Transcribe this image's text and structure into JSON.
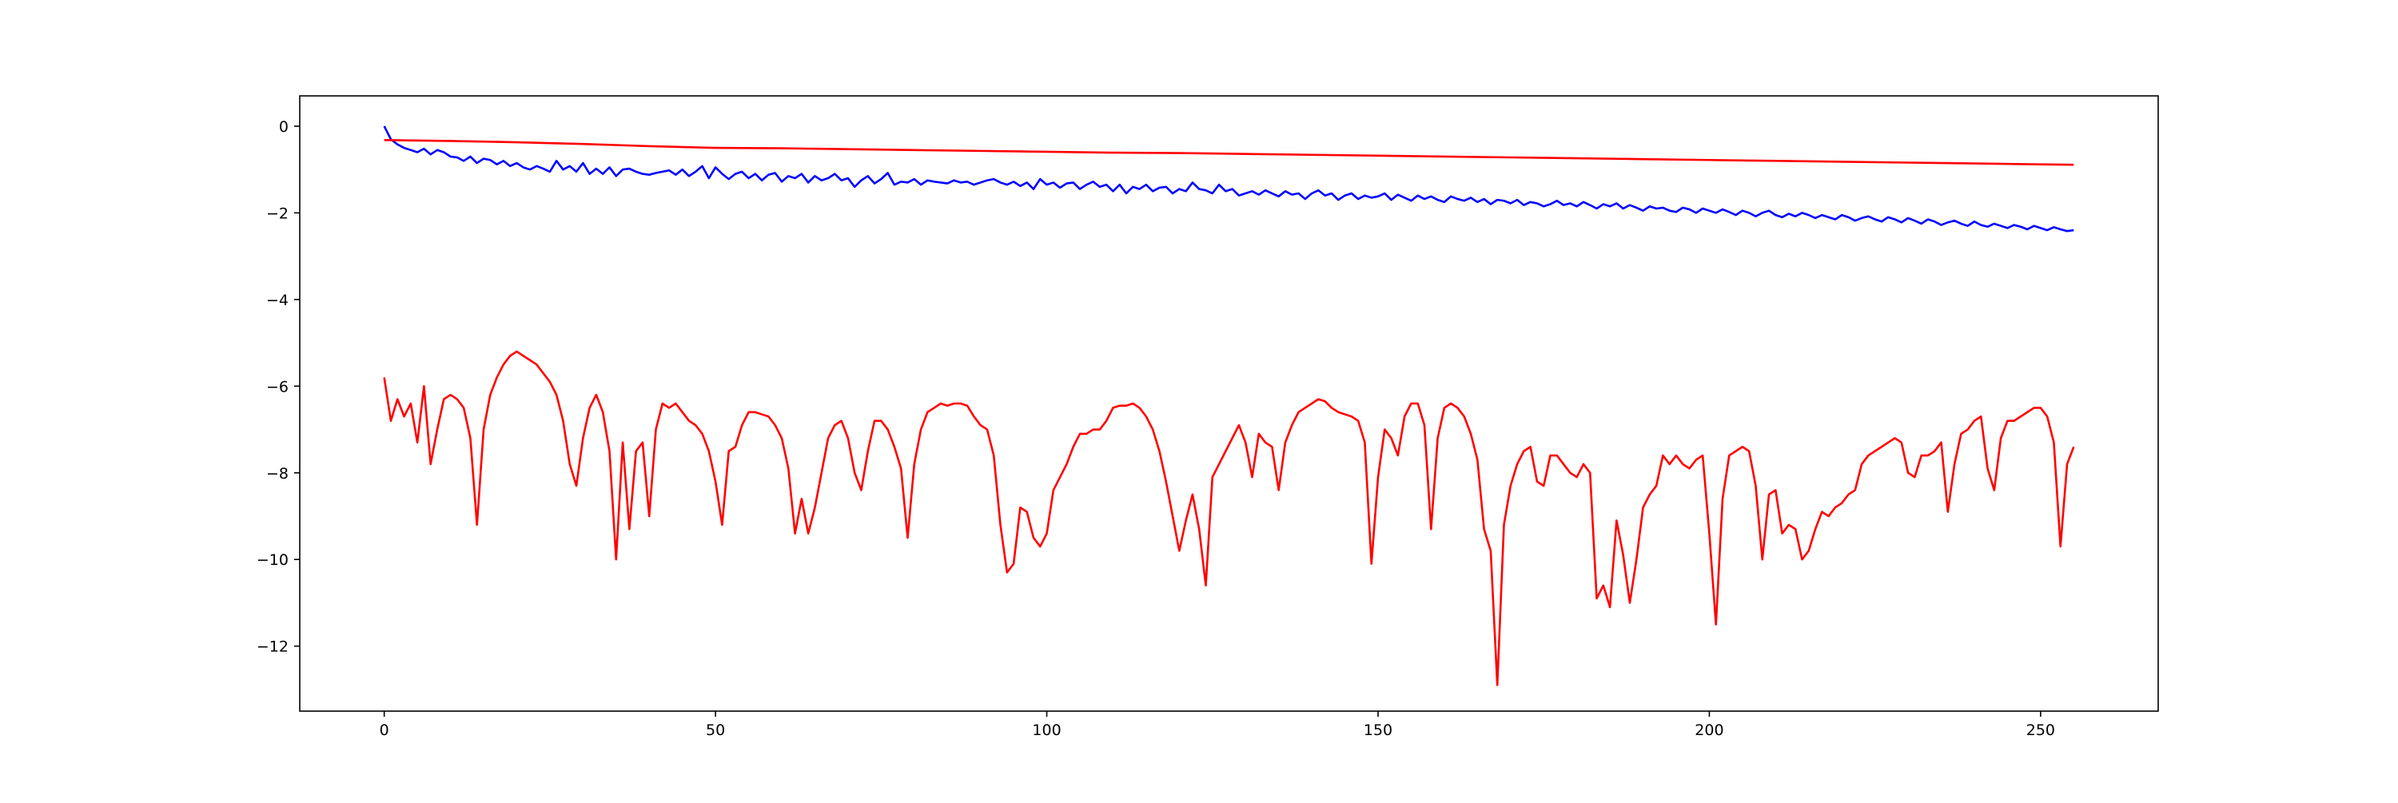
{
  "chart_data": {
    "type": "line",
    "title": "",
    "xlabel": "",
    "ylabel": "",
    "xlim": [
      -12.75,
      267.75
    ],
    "ylim": [
      -13.5,
      0.7
    ],
    "grid": false,
    "xticks": [
      0,
      50,
      100,
      150,
      200,
      250
    ],
    "yticks": [
      0,
      -2,
      -4,
      -6,
      -8,
      -10,
      -12
    ],
    "xtick_labels": [
      "0",
      "50",
      "100",
      "150",
      "200",
      "250"
    ],
    "ytick_labels": [
      "0",
      "−2",
      "−4",
      "−6",
      "−8",
      "−10",
      "−12"
    ],
    "series": [
      {
        "color": "#0000ff",
        "x": [
          0,
          1,
          2,
          3,
          4,
          5,
          6,
          7,
          8,
          9,
          10,
          11,
          12,
          13,
          14,
          15,
          16,
          17,
          18,
          19,
          20,
          21,
          22,
          23,
          24,
          25,
          26,
          27,
          28,
          29,
          30,
          31,
          32,
          33,
          34,
          35,
          36,
          37,
          38,
          39,
          40,
          41,
          42,
          43,
          44,
          45,
          46,
          47,
          48,
          49,
          50,
          51,
          52,
          53,
          54,
          55,
          56,
          57,
          58,
          59,
          60,
          61,
          62,
          63,
          64,
          65,
          66,
          67,
          68,
          69,
          70,
          71,
          72,
          73,
          74,
          75,
          76,
          77,
          78,
          79,
          80,
          81,
          82,
          83,
          84,
          85,
          86,
          87,
          88,
          89,
          90,
          91,
          92,
          93,
          94,
          95,
          96,
          97,
          98,
          99,
          100,
          101,
          102,
          103,
          104,
          105,
          106,
          107,
          108,
          109,
          110,
          111,
          112,
          113,
          114,
          115,
          116,
          117,
          118,
          119,
          120,
          121,
          122,
          123,
          124,
          125,
          126,
          127,
          128,
          129,
          130,
          131,
          132,
          133,
          134,
          135,
          136,
          137,
          138,
          139,
          140,
          141,
          142,
          143,
          144,
          145,
          146,
          147,
          148,
          149,
          150,
          151,
          152,
          153,
          154,
          155,
          156,
          157,
          158,
          159,
          160,
          161,
          162,
          163,
          164,
          165,
          166,
          167,
          168,
          169,
          170,
          171,
          172,
          173,
          174,
          175,
          176,
          177,
          178,
          179,
          180,
          181,
          182,
          183,
          184,
          185,
          186,
          187,
          188,
          189,
          190,
          191,
          192,
          193,
          194,
          195,
          196,
          197,
          198,
          199,
          200,
          201,
          202,
          203,
          204,
          205,
          206,
          207,
          208,
          209,
          210,
          211,
          212,
          213,
          214,
          215,
          216,
          217,
          218,
          219,
          220,
          221,
          222,
          223,
          224,
          225,
          226,
          227,
          228,
          229,
          230,
          231,
          232,
          233,
          234,
          235,
          236,
          237,
          238,
          239,
          240,
          241,
          242,
          243,
          244,
          245,
          246,
          247,
          248,
          249,
          250,
          251,
          252,
          253,
          254,
          255
        ],
        "y": [
          0.0,
          -0.3,
          -0.42,
          -0.5,
          -0.55,
          -0.6,
          -0.52,
          -0.65,
          -0.55,
          -0.6,
          -0.7,
          -0.72,
          -0.8,
          -0.7,
          -0.85,
          -0.75,
          -0.78,
          -0.88,
          -0.8,
          -0.92,
          -0.85,
          -0.95,
          -1.0,
          -0.92,
          -0.98,
          -1.05,
          -0.8,
          -1.0,
          -0.92,
          -1.05,
          -0.85,
          -1.1,
          -0.98,
          -1.1,
          -0.95,
          -1.15,
          -1.0,
          -0.98,
          -1.05,
          -1.1,
          -1.12,
          -1.08,
          -1.05,
          -1.02,
          -1.12,
          -1.0,
          -1.15,
          -1.05,
          -0.92,
          -1.2,
          -0.95,
          -1.1,
          -1.22,
          -1.1,
          -1.05,
          -1.2,
          -1.1,
          -1.25,
          -1.12,
          -1.08,
          -1.28,
          -1.15,
          -1.2,
          -1.1,
          -1.3,
          -1.15,
          -1.25,
          -1.2,
          -1.1,
          -1.25,
          -1.2,
          -1.4,
          -1.25,
          -1.15,
          -1.32,
          -1.22,
          -1.08,
          -1.35,
          -1.28,
          -1.3,
          -1.22,
          -1.35,
          -1.25,
          -1.28,
          -1.3,
          -1.32,
          -1.25,
          -1.3,
          -1.28,
          -1.35,
          -1.3,
          -1.25,
          -1.22,
          -1.3,
          -1.35,
          -1.28,
          -1.38,
          -1.3,
          -1.45,
          -1.22,
          -1.35,
          -1.3,
          -1.42,
          -1.32,
          -1.3,
          -1.45,
          -1.35,
          -1.28,
          -1.4,
          -1.35,
          -1.5,
          -1.35,
          -1.55,
          -1.4,
          -1.45,
          -1.35,
          -1.5,
          -1.42,
          -1.4,
          -1.55,
          -1.45,
          -1.5,
          -1.3,
          -1.45,
          -1.48,
          -1.55,
          -1.35,
          -1.5,
          -1.45,
          -1.6,
          -1.55,
          -1.5,
          -1.58,
          -1.48,
          -1.55,
          -1.62,
          -1.5,
          -1.58,
          -1.55,
          -1.68,
          -1.55,
          -1.48,
          -1.6,
          -1.55,
          -1.7,
          -1.6,
          -1.55,
          -1.68,
          -1.6,
          -1.65,
          -1.62,
          -1.55,
          -1.7,
          -1.58,
          -1.65,
          -1.72,
          -1.6,
          -1.68,
          -1.62,
          -1.7,
          -1.75,
          -1.62,
          -1.68,
          -1.72,
          -1.65,
          -1.75,
          -1.68,
          -1.8,
          -1.7,
          -1.72,
          -1.78,
          -1.7,
          -1.82,
          -1.75,
          -1.78,
          -1.85,
          -1.8,
          -1.72,
          -1.82,
          -1.78,
          -1.85,
          -1.75,
          -1.82,
          -1.9,
          -1.8,
          -1.85,
          -1.78,
          -1.9,
          -1.82,
          -1.88,
          -1.95,
          -1.85,
          -1.9,
          -1.88,
          -1.95,
          -1.98,
          -1.88,
          -1.92,
          -2.0,
          -1.9,
          -1.95,
          -2.0,
          -1.92,
          -1.98,
          -2.05,
          -1.95,
          -2.0,
          -2.08,
          -2.0,
          -1.95,
          -2.05,
          -2.1,
          -2.02,
          -2.08,
          -2.0,
          -2.05,
          -2.12,
          -2.05,
          -2.1,
          -2.15,
          -2.05,
          -2.1,
          -2.18,
          -2.12,
          -2.08,
          -2.15,
          -2.2,
          -2.1,
          -2.15,
          -2.22,
          -2.12,
          -2.18,
          -2.25,
          -2.15,
          -2.2,
          -2.28,
          -2.22,
          -2.18,
          -2.25,
          -2.3,
          -2.2,
          -2.28,
          -2.32,
          -2.25,
          -2.3,
          -2.35,
          -2.28,
          -2.32,
          -2.38,
          -2.3,
          -2.35,
          -2.4,
          -2.33,
          -2.38,
          -2.42,
          -2.4
        ]
      },
      {
        "color": "#ff0000",
        "x": [
          0,
          10,
          20,
          30,
          40,
          50,
          60,
          70,
          80,
          90,
          100,
          110,
          120,
          130,
          140,
          150,
          160,
          170,
          180,
          190,
          200,
          210,
          220,
          230,
          240,
          250,
          255
        ],
        "y": [
          -0.32,
          -0.34,
          -0.37,
          -0.41,
          -0.46,
          -0.5,
          -0.51,
          -0.53,
          -0.55,
          -0.57,
          -0.59,
          -0.61,
          -0.62,
          -0.64,
          -0.66,
          -0.68,
          -0.7,
          -0.72,
          -0.74,
          -0.76,
          -0.78,
          -0.8,
          -0.82,
          -0.84,
          -0.86,
          -0.88,
          -0.89
        ]
      },
      {
        "color": "#ff0000",
        "x": [
          0,
          1,
          2,
          3,
          4,
          5,
          6,
          7,
          8,
          9,
          10,
          11,
          12,
          13,
          14,
          15,
          16,
          17,
          18,
          19,
          20,
          21,
          22,
          23,
          24,
          25,
          26,
          27,
          28,
          29,
          30,
          31,
          32,
          33,
          34,
          35,
          36,
          37,
          38,
          39,
          40,
          41,
          42,
          43,
          44,
          45,
          46,
          47,
          48,
          49,
          50,
          51,
          52,
          53,
          54,
          55,
          56,
          57,
          58,
          59,
          60,
          61,
          62,
          63,
          64,
          65,
          66,
          67,
          68,
          69,
          70,
          71,
          72,
          73,
          74,
          75,
          76,
          77,
          78,
          79,
          80,
          81,
          82,
          83,
          84,
          85,
          86,
          87,
          88,
          89,
          90,
          91,
          92,
          93,
          94,
          95,
          96,
          97,
          98,
          99,
          100,
          101,
          102,
          103,
          104,
          105,
          106,
          107,
          108,
          109,
          110,
          111,
          112,
          113,
          114,
          115,
          116,
          117,
          118,
          119,
          120,
          121,
          122,
          123,
          124,
          125,
          126,
          127,
          128,
          129,
          130,
          131,
          132,
          133,
          134,
          135,
          136,
          137,
          138,
          139,
          140,
          141,
          142,
          143,
          144,
          145,
          146,
          147,
          148,
          149,
          150,
          151,
          152,
          153,
          154,
          155,
          156,
          157,
          158,
          159,
          160,
          161,
          162,
          163,
          164,
          165,
          166,
          167,
          168,
          169,
          170,
          171,
          172,
          173,
          174,
          175,
          176,
          177,
          178,
          179,
          180,
          181,
          182,
          183,
          184,
          185,
          186,
          187,
          188,
          189,
          190,
          191,
          192,
          193,
          194,
          195,
          196,
          197,
          198,
          199,
          200,
          201,
          202,
          203,
          204,
          205,
          206,
          207,
          208,
          209,
          210,
          211,
          212,
          213,
          214,
          215,
          216,
          217,
          218,
          219,
          220,
          221,
          222,
          223,
          224,
          225,
          226,
          227,
          228,
          229,
          230,
          231,
          232,
          233,
          234,
          235,
          236,
          237,
          238,
          239,
          240,
          241,
          242,
          243,
          244,
          245,
          246,
          247,
          248,
          249,
          250,
          251,
          252,
          253,
          254,
          255
        ],
        "y": [
          -5.8,
          -6.8,
          -6.3,
          -6.7,
          -6.4,
          -7.3,
          -6.0,
          -7.8,
          -7.0,
          -6.3,
          -6.2,
          -6.3,
          -6.5,
          -7.2,
          -9.2,
          -7.0,
          -6.2,
          -5.8,
          -5.5,
          -5.3,
          -5.2,
          -5.3,
          -5.4,
          -5.5,
          -5.7,
          -5.9,
          -6.2,
          -6.8,
          -7.8,
          -8.3,
          -7.2,
          -6.5,
          -6.2,
          -6.6,
          -7.5,
          -10.0,
          -7.3,
          -9.3,
          -7.5,
          -7.3,
          -9.0,
          -7.0,
          -6.4,
          -6.5,
          -6.4,
          -6.6,
          -6.8,
          -6.9,
          -7.1,
          -7.5,
          -8.2,
          -9.2,
          -7.5,
          -7.4,
          -6.9,
          -6.6,
          -6.6,
          -6.65,
          -6.7,
          -6.9,
          -7.2,
          -7.9,
          -9.4,
          -8.6,
          -9.4,
          -8.8,
          -8.0,
          -7.2,
          -6.9,
          -6.8,
          -7.2,
          -8.0,
          -8.4,
          -7.5,
          -6.8,
          -6.8,
          -7.0,
          -7.4,
          -7.9,
          -9.5,
          -7.8,
          -7.0,
          -6.6,
          -6.5,
          -6.4,
          -6.45,
          -6.4,
          -6.4,
          -6.45,
          -6.7,
          -6.9,
          -7.0,
          -7.6,
          -9.2,
          -10.3,
          -10.1,
          -8.8,
          -8.9,
          -9.5,
          -9.7,
          -9.4,
          -8.4,
          -8.1,
          -7.8,
          -7.4,
          -7.1,
          -7.1,
          -7.0,
          -7.0,
          -6.8,
          -6.5,
          -6.45,
          -6.45,
          -6.4,
          -6.5,
          -6.7,
          -7.0,
          -7.5,
          -8.2,
          -9.0,
          -9.8,
          -9.1,
          -8.5,
          -9.3,
          -10.6,
          -8.1,
          -7.8,
          -7.5,
          -7.2,
          -6.9,
          -7.3,
          -8.1,
          -7.1,
          -7.3,
          -7.4,
          -8.4,
          -7.3,
          -6.9,
          -6.6,
          -6.5,
          -6.4,
          -6.3,
          -6.35,
          -6.5,
          -6.6,
          -6.65,
          -6.7,
          -6.8,
          -7.3,
          -10.1,
          -8.1,
          -7.0,
          -7.2,
          -7.6,
          -6.7,
          -6.4,
          -6.4,
          -6.9,
          -9.3,
          -7.2,
          -6.5,
          -6.4,
          -6.5,
          -6.7,
          -7.1,
          -7.7,
          -9.3,
          -9.8,
          -12.9,
          -9.2,
          -8.3,
          -7.8,
          -7.5,
          -7.4,
          -8.2,
          -8.3,
          -7.6,
          -7.6,
          -7.8,
          -8.0,
          -8.1,
          -7.8,
          -8.0,
          -10.9,
          -10.6,
          -11.1,
          -9.1,
          -9.9,
          -11.0,
          -10.0,
          -8.8,
          -8.5,
          -8.3,
          -7.6,
          -7.8,
          -7.6,
          -7.8,
          -7.9,
          -7.7,
          -7.6,
          -9.4,
          -11.5,
          -8.6,
          -7.6,
          -7.5,
          -7.4,
          -7.5,
          -8.3,
          -10.0,
          -8.5,
          -8.4,
          -9.4,
          -9.2,
          -9.3,
          -10.0,
          -9.8,
          -9.3,
          -8.9,
          -9.0,
          -8.8,
          -8.7,
          -8.5,
          -8.4,
          -7.8,
          -7.6,
          -7.5,
          -7.4,
          -7.3,
          -7.2,
          -7.3,
          -8.0,
          -8.1,
          -7.6,
          -7.6,
          -7.5,
          -7.3,
          -8.9,
          -7.8,
          -7.1,
          -7.0,
          -6.8,
          -6.7,
          -7.9,
          -8.4,
          -7.2,
          -6.8,
          -6.8,
          -6.7,
          -6.6,
          -6.5,
          -6.5,
          -6.7,
          -7.3,
          -9.7,
          -7.8,
          -7.4
        ]
      }
    ]
  }
}
